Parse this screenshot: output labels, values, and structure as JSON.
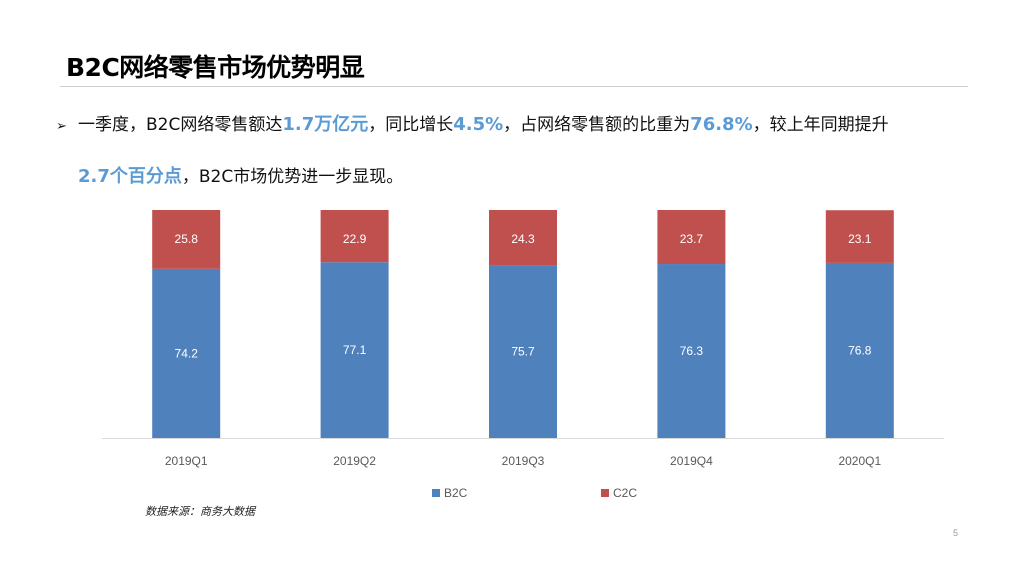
{
  "slide": {
    "title": "B2C网络零售市场优势明显",
    "bullet": {
      "arrow": "➢",
      "t1": "一季度，B2C网络零售额达",
      "h1": "1.7万亿元",
      "t2": "，同比增长",
      "h2": "4.5%",
      "t3": "，占网络零售额的比重为",
      "h3": "76.8%",
      "t4": "，较上年同期提升",
      "h4": "2.7个百分点",
      "t5": "，B2C市场优势进一步显现。"
    },
    "source": "数据来源：商务大数据",
    "page_number": "5",
    "colors": {
      "b2c": "#4f81bd",
      "c2c": "#c0504d",
      "highlight": "#5b9bd5"
    }
  },
  "chart_data": {
    "type": "bar",
    "stacked": true,
    "categories": [
      "2019Q1",
      "2019Q2",
      "2019Q3",
      "2019Q4",
      "2020Q1"
    ],
    "series": [
      {
        "name": "B2C",
        "values": [
          74.2,
          77.1,
          75.7,
          76.3,
          76.8
        ],
        "color": "#4f81bd"
      },
      {
        "name": "C2C",
        "values": [
          25.8,
          22.9,
          24.3,
          23.7,
          23.1
        ],
        "color": "#c0504d"
      }
    ],
    "ylim": [
      0,
      100
    ],
    "grid": false,
    "legend": "bottom",
    "data_labels": true
  }
}
